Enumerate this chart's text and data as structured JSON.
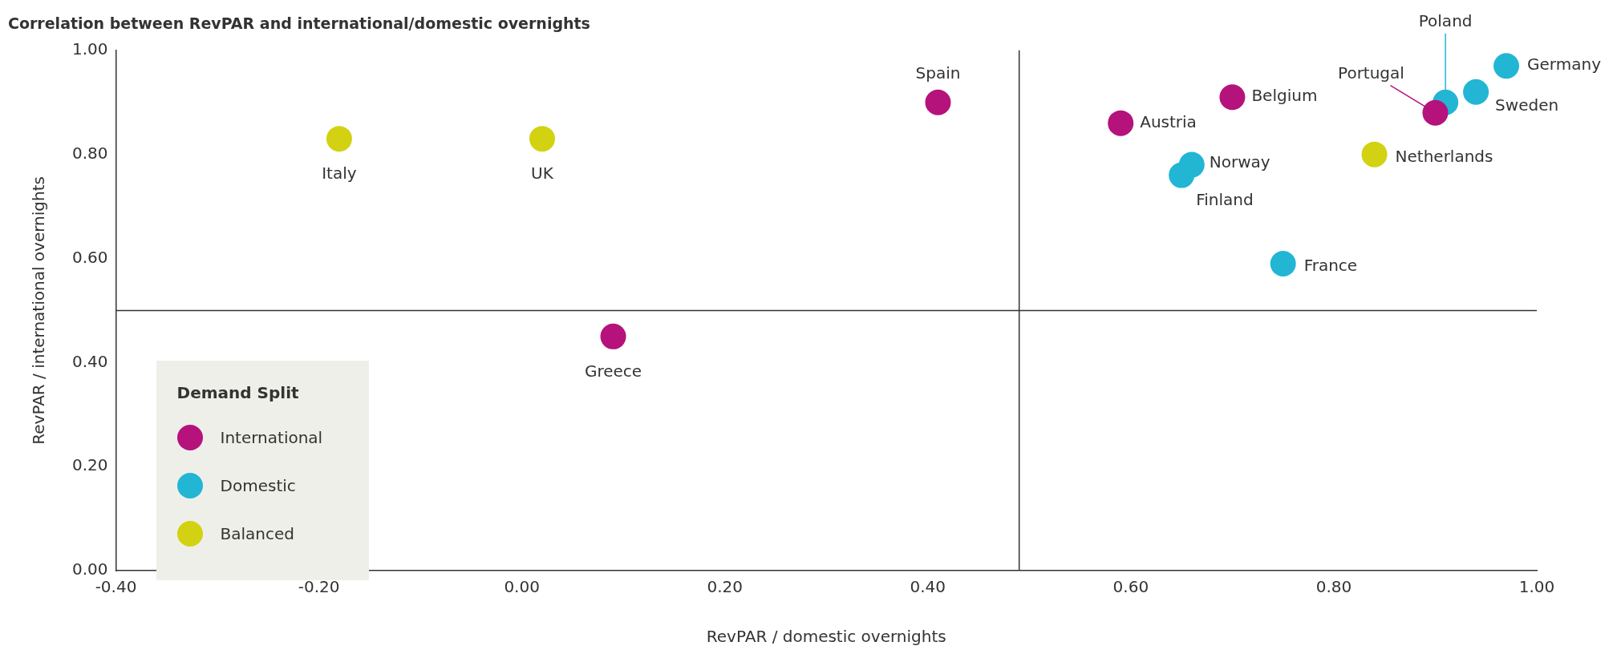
{
  "chart_data": {
    "type": "scatter",
    "title": "Correlation between RevPAR and international/domestic overnights",
    "xlabel": "RevPAR / domestic overnights",
    "ylabel": "RevPAR / international overnights",
    "legend_title": "Demand Split",
    "series": [
      {
        "name": "International",
        "color": "#b5127c",
        "x": [
          0.41,
          0.09,
          0.59,
          0.7,
          0.9
        ],
        "values": [
          0.9,
          0.45,
          0.86,
          0.91,
          0.88
        ]
      },
      {
        "name": "Domestic",
        "color": "#22b6d4",
        "x": [
          0.91,
          0.97,
          0.94,
          0.66,
          0.65,
          0.75
        ],
        "values": [
          0.9,
          0.97,
          0.92,
          0.78,
          0.76,
          0.59
        ]
      },
      {
        "name": "Balanced",
        "color": "#d2d212",
        "x": [
          -0.18,
          0.02,
          0.84
        ],
        "values": [
          0.83,
          0.83,
          0.8
        ]
      }
    ],
    "annotations": [
      {
        "text": "Italy",
        "x": -0.18,
        "y": 0.83
      },
      {
        "text": "UK",
        "x": 0.02,
        "y": 0.83
      },
      {
        "text": "Spain",
        "x": 0.41,
        "y": 0.9
      },
      {
        "text": "Greece",
        "x": 0.09,
        "y": 0.45
      },
      {
        "text": "Austria",
        "x": 0.59,
        "y": 0.86
      },
      {
        "text": "Belgium",
        "x": 0.7,
        "y": 0.91
      },
      {
        "text": "Portugal",
        "x": 0.9,
        "y": 0.88
      },
      {
        "text": "Poland",
        "x": 0.91,
        "y": 0.9
      },
      {
        "text": "Germany",
        "x": 0.97,
        "y": 0.97
      },
      {
        "text": "Sweden",
        "x": 0.94,
        "y": 0.92
      },
      {
        "text": "Netherlands",
        "x": 0.84,
        "y": 0.8
      },
      {
        "text": "Norway",
        "x": 0.66,
        "y": 0.78
      },
      {
        "text": "Finland",
        "x": 0.65,
        "y": 0.76
      },
      {
        "text": "France",
        "x": 0.75,
        "y": 0.59
      }
    ],
    "ref_lines": [
      {
        "axis": "x",
        "value": 0.49,
        "color": "#333333"
      },
      {
        "axis": "y",
        "value": 0.5,
        "color": "#333333"
      }
    ],
    "xlim": [
      -0.4,
      1.0
    ],
    "ylim": [
      0,
      1.0
    ],
    "xticks": [
      {
        "value": -0.4,
        "label": "-0.40"
      },
      {
        "value": -0.2,
        "label": "-0.20"
      },
      {
        "value": 0,
        "label": "0.00"
      },
      {
        "value": 0.2,
        "label": "0.20"
      },
      {
        "value": 0.4,
        "label": "0.40"
      },
      {
        "value": 0.6,
        "label": "0.60"
      },
      {
        "value": 0.8,
        "label": "0.80"
      },
      {
        "value": 1.0,
        "label": "1.00"
      }
    ],
    "yticks": [
      {
        "value": 0,
        "label": "0.00"
      },
      {
        "value": 0.2,
        "label": "0.20"
      },
      {
        "value": 0.4,
        "label": "0.40"
      },
      {
        "value": 0.6,
        "label": "0.60"
      },
      {
        "value": 0.8,
        "label": "0.80"
      },
      {
        "value": 1.0,
        "label": "1.00"
      }
    ],
    "grid": false,
    "legend": "bottom left",
    "marker": "circle"
  }
}
